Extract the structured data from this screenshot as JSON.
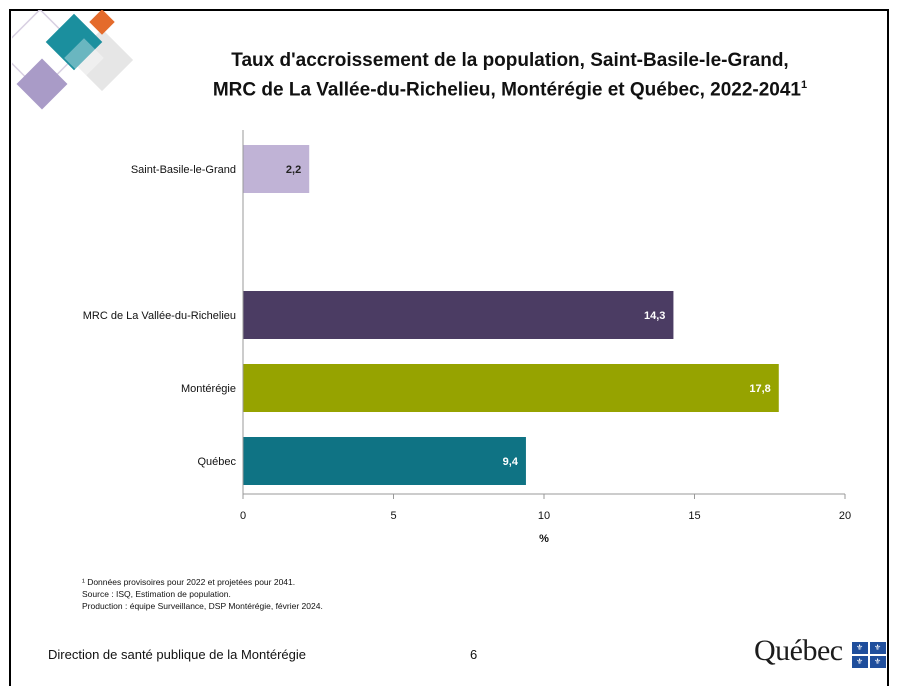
{
  "title_line1": "Taux d'accroissement de la population, Saint-Basile-le-Grand,",
  "title_line2": "MRC de La Vallée-du-Richelieu, Montérégie et Québec, 2022-2041",
  "title_sup": "1",
  "chart_data": {
    "type": "bar",
    "orientation": "horizontal",
    "categories": [
      "Saint-Basile-le-Grand",
      "MRC de La Vallée-du-Richelieu",
      "Montérégie",
      "Québec"
    ],
    "values": [
      2.2,
      14.3,
      17.8,
      9.4
    ],
    "value_labels": [
      "2,2",
      "14,3",
      "17,8",
      "9,4"
    ],
    "colors": [
      "#c0b3d6",
      "#4b3c63",
      "#96a300",
      "#0f7384"
    ],
    "label_colors": [
      "#222222",
      "#ffffff",
      "#ffffff",
      "#ffffff"
    ],
    "xlabel": "%",
    "xlim": [
      0,
      20
    ],
    "xticks": [
      0,
      5,
      10,
      15,
      20
    ],
    "xtick_labels": [
      "0",
      "5",
      "10",
      "15",
      "20"
    ],
    "grid": false
  },
  "footnotes": [
    "¹ Données provisoires pour 2022 et projetées pour 2041.",
    "Source : ISQ, Estimation de population.",
    "Production : équipe Surveillance, DSP Montérégie, février 2024."
  ],
  "footer": {
    "organization": "Direction de santé publique de la Montérégie",
    "page_number": "6",
    "logo_text": "Québec",
    "logo_icon": "fleur-de-lis-flag-icon"
  },
  "decoration_colors": [
    "#c8b9d6",
    "#1b8f9e",
    "#e46b2c",
    "#d9d9d9"
  ]
}
